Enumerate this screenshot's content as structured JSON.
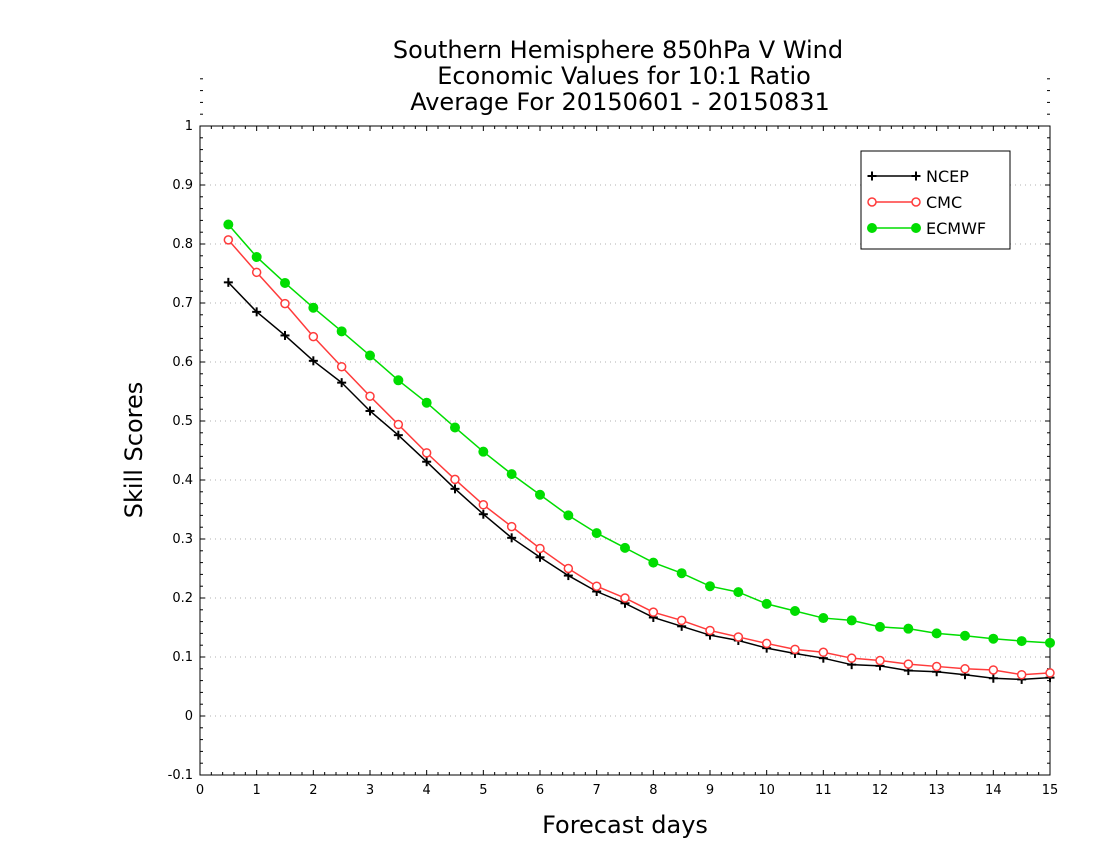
{
  "chart_data": {
    "type": "line",
    "title_lines": [
      "Southern Hemisphere 850hPa V Wind",
      "Economic Values for 10:1 Ratio",
      "Average For 20150601 - 20150831"
    ],
    "xlabel": "Forecast days",
    "ylabel": "Skill Scores",
    "xlim": [
      0,
      15
    ],
    "ylim": [
      -0.1,
      1
    ],
    "xticks": [
      0,
      1,
      2,
      3,
      4,
      5,
      6,
      7,
      8,
      9,
      10,
      11,
      12,
      13,
      14,
      15
    ],
    "xtick_labels": [
      "0",
      "1",
      "2",
      "3",
      "4",
      "5",
      "6",
      "7",
      "8",
      "9",
      "10",
      "11",
      "12",
      "13",
      "14",
      "15"
    ],
    "yticks": [
      -0.1,
      0,
      0.1,
      0.2,
      0.3,
      0.4,
      0.5,
      0.6,
      0.7,
      0.8,
      0.9,
      1
    ],
    "ytick_labels": [
      "-0.1",
      "0",
      "0.1",
      "0.2",
      "0.3",
      "0.4",
      "0.5",
      "0.6",
      "0.7",
      "0.8",
      "0.9",
      "1"
    ],
    "grid": true,
    "legend_position": "top-right",
    "x": [
      0.5,
      1,
      1.5,
      2,
      2.5,
      3,
      3.5,
      4,
      4.5,
      5,
      5.5,
      6,
      6.5,
      7,
      7.5,
      8,
      8.5,
      9,
      9.5,
      10,
      10.5,
      11,
      11.5,
      12,
      12.5,
      13,
      13.5,
      14,
      14.5,
      15
    ],
    "series": [
      {
        "name": "NCEP",
        "color": "#000000",
        "marker": "plus",
        "values": [
          0.735,
          0.685,
          0.645,
          0.602,
          0.565,
          0.517,
          0.476,
          0.431,
          0.385,
          0.342,
          0.302,
          0.269,
          0.238,
          0.211,
          0.191,
          0.167,
          0.152,
          0.137,
          0.128,
          0.115,
          0.106,
          0.098,
          0.087,
          0.085,
          0.077,
          0.075,
          0.07,
          0.064,
          0.062,
          0.065
        ]
      },
      {
        "name": "CMC",
        "color": "#ff3b3b",
        "marker": "open-circle",
        "values": [
          0.807,
          0.752,
          0.699,
          0.643,
          0.592,
          0.542,
          0.494,
          0.446,
          0.401,
          0.358,
          0.321,
          0.284,
          0.25,
          0.22,
          0.2,
          0.176,
          0.162,
          0.145,
          0.134,
          0.123,
          0.113,
          0.108,
          0.098,
          0.094,
          0.088,
          0.084,
          0.08,
          0.078,
          0.07,
          0.073
        ]
      },
      {
        "name": "ECMWF",
        "color": "#00dd00",
        "marker": "filled-circle",
        "values": [
          0.833,
          0.778,
          0.734,
          0.692,
          0.652,
          0.611,
          0.569,
          0.531,
          0.489,
          0.448,
          0.41,
          0.375,
          0.34,
          0.31,
          0.285,
          0.26,
          0.242,
          0.22,
          0.21,
          0.19,
          0.178,
          0.166,
          0.162,
          0.151,
          0.148,
          0.14,
          0.136,
          0.131,
          0.127,
          0.124
        ]
      }
    ]
  }
}
